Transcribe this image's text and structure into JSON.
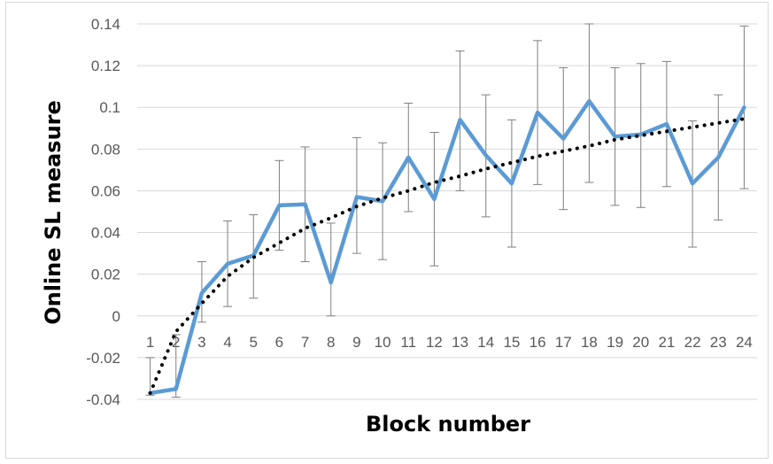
{
  "chart_data": {
    "type": "line",
    "title": "",
    "xlabel": "Block number",
    "ylabel": "Online SL measure",
    "categories": [
      "1",
      "2",
      "3",
      "4",
      "5",
      "6",
      "7",
      "8",
      "9",
      "10",
      "11",
      "12",
      "13",
      "14",
      "15",
      "16",
      "17",
      "18",
      "19",
      "20",
      "21",
      "22",
      "23",
      "24"
    ],
    "ylim": [
      -0.04,
      0.14
    ],
    "yticks": [
      -0.04,
      -0.02,
      0,
      0.02,
      0.04,
      0.06,
      0.08,
      0.1,
      0.12,
      0.14
    ],
    "ytick_labels": [
      "-0.04",
      "-0.02",
      "0",
      "0.02",
      "0.04",
      "0.06",
      "0.08",
      "0.1",
      "0.12",
      "0.14"
    ],
    "grid": "horizontal",
    "legend": "none",
    "series": [
      {
        "values": [
          -0.037,
          -0.035,
          0.011,
          0.025,
          0.029,
          0.053,
          0.0535,
          0.016,
          0.057,
          0.055,
          0.076,
          0.056,
          0.094,
          0.077,
          0.0635,
          0.0975,
          0.085,
          0.103,
          0.086,
          0.087,
          0.092,
          0.0635,
          0.076,
          0.1
        ],
        "error_upper": [
          -0.02,
          -0.009,
          0.026,
          0.0455,
          0.0485,
          0.0745,
          0.081,
          0.0445,
          0.0855,
          0.083,
          0.102,
          0.088,
          0.127,
          0.106,
          0.094,
          0.132,
          0.119,
          0.14,
          0.119,
          0.121,
          0.122,
          0.0935,
          0.106,
          0.139
        ],
        "error_lower": [
          -0.038,
          -0.039,
          -0.003,
          0.0045,
          0.0085,
          0.0315,
          0.026,
          0.0,
          0.03,
          0.027,
          0.05,
          0.024,
          0.06,
          0.0475,
          0.033,
          0.063,
          0.051,
          0.064,
          0.053,
          0.052,
          0.062,
          0.033,
          0.046,
          0.061
        ],
        "color": "#5b9bd5"
      }
    ],
    "trendline": {
      "type": "logarithmic",
      "values": [
        -0.037,
        -0.0075,
        0.006,
        0.019,
        0.028,
        0.035,
        0.042,
        0.047,
        0.0525,
        0.0565,
        0.06,
        0.064,
        0.067,
        0.0705,
        0.0735,
        0.0765,
        0.079,
        0.0815,
        0.0845,
        0.0865,
        0.0885,
        0.0905,
        0.0925,
        0.0945
      ],
      "color": "#000000",
      "style": "dotted"
    },
    "error_bar_color": "#7f7f7f"
  }
}
